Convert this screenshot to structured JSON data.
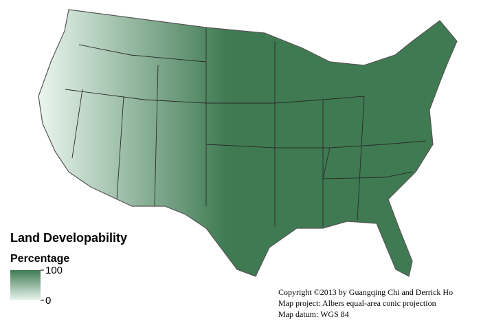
{
  "legend": {
    "title": "Land Developability",
    "subtitle": "Percentage",
    "max": 100,
    "min": 0,
    "color_low": "#eaf6ef",
    "color_high": "#3f7a52"
  },
  "credits": [
    "Copyright ©2013 by Guangqing Chi and Derrick Ho",
    "Map project: Albers equal-area conic projection",
    "Map datum: WGS 84"
  ]
}
